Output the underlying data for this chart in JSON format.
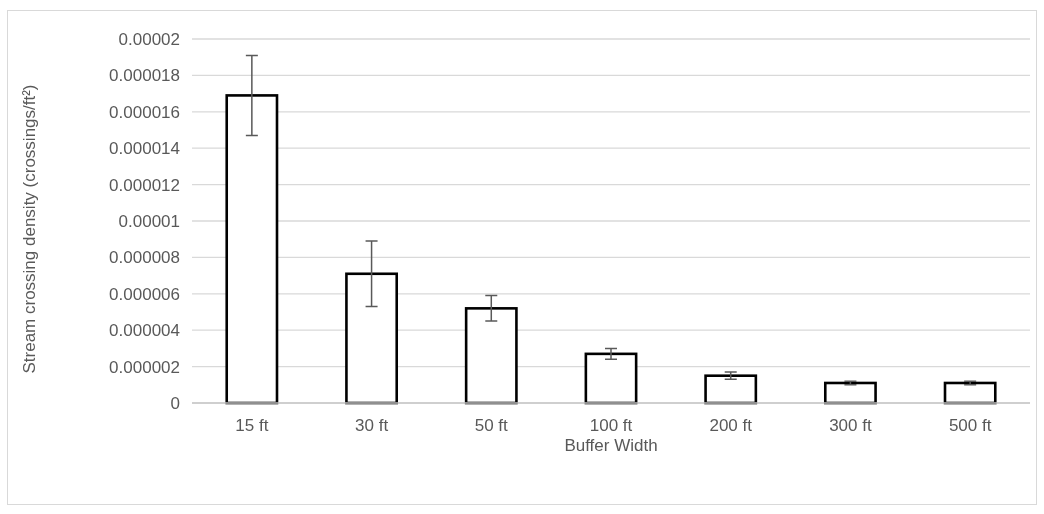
{
  "chart_data": {
    "type": "bar",
    "xlabel": "Buffer Width",
    "ylabel": "Stream crossing density (crossings/ft²)",
    "categories": [
      "15 ft",
      "30 ft",
      "50 ft",
      "100 ft",
      "200 ft",
      "300 ft",
      "500 ft"
    ],
    "series": [
      {
        "color": "#000000",
        "values": [
          1.69e-05,
          7.1e-06,
          5.2e-06,
          2.7e-06,
          1.5e-06,
          1.1e-06,
          1.1e-06
        ],
        "errors": [
          2.2e-06,
          1.8e-06,
          7e-07,
          3e-07,
          2e-07,
          1e-07,
          1e-07
        ]
      }
    ],
    "ylim": [
      0,
      2e-05
    ],
    "yticks": [
      0,
      {
        "value": 2e-06,
        "label": "0.000002"
      },
      {
        "value": 4e-06,
        "label": "0.000004"
      },
      {
        "value": 6e-06,
        "label": "0.000006"
      },
      {
        "value": 8e-06,
        "label": "0.000008"
      },
      {
        "value": 1e-05,
        "label": "0.00001"
      },
      {
        "value": 1.2e-05,
        "label": "0.000012"
      },
      {
        "value": 1.4e-05,
        "label": "0.000014"
      },
      {
        "value": 1.6e-05,
        "label": "0.000016"
      },
      {
        "value": 1.8e-05,
        "label": "0.000018"
      },
      {
        "value": 2e-05,
        "label": "0.00002"
      }
    ],
    "grid": "y"
  }
}
